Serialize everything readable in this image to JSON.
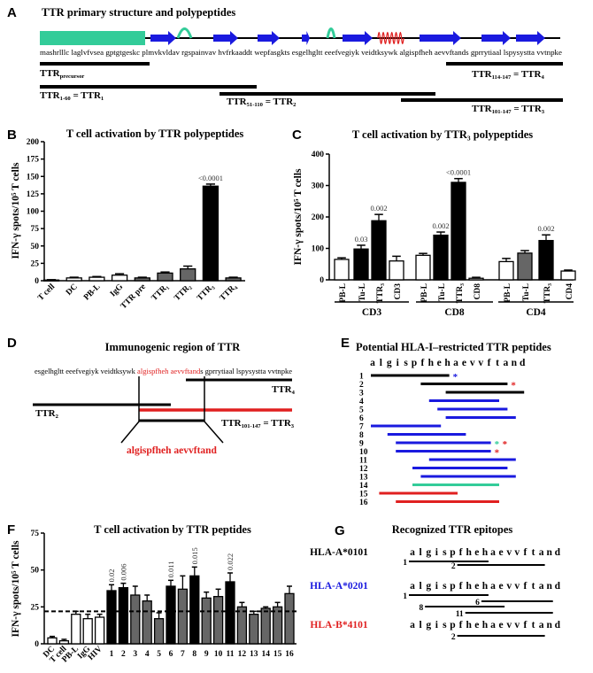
{
  "colors": {
    "strand": "#1a1adf",
    "loop": "#33cc99",
    "helix": "#e02020",
    "signal": "#33cc99",
    "highlight": "#e02020",
    "black_bar": "#000000",
    "gray_bar": "#666666",
    "white_bar": "#ffffff",
    "hla_a0101": "#000000",
    "hla_a0201": "#2a2acc",
    "hla_b4101": "#cc1a1a"
  },
  "panelA": {
    "letter": "A",
    "title": "TTR primary structure and polypeptides",
    "secondary_structure": [
      "signal",
      "strand",
      "loop",
      "strand",
      "strand",
      "strand",
      "loop",
      "strand",
      "helix",
      "strand",
      "strand",
      "strand"
    ],
    "sequence": "mashrlllc laglvfvsea gptgtgeskc plmvkvldav rgspainvav hvfrkaaddt wepfasgkts esgelhgltt eeefvegiyk veidtksywk algispfheh aevvftands gprrytiaal lspysystta vvtnpke",
    "labels": {
      "precursor": [
        {
          "t": "TTR",
          "sub": false
        },
        {
          "t": "precursor",
          "sub": true
        }
      ],
      "ttr4": [
        {
          "t": "TTR",
          "sub": false
        },
        {
          "t": "114-147",
          "sub": true
        },
        {
          "t": " = TTR",
          "sub": false
        },
        {
          "t": "4",
          "sub": true
        }
      ],
      "ttr1": [
        {
          "t": "TTR",
          "sub": false
        },
        {
          "t": "1-60",
          "sub": true
        },
        {
          "t": " = TTR",
          "sub": false
        },
        {
          "t": "1",
          "sub": true
        }
      ],
      "ttr2": [
        {
          "t": "TTR",
          "sub": false
        },
        {
          "t": "51-110",
          "sub": true
        },
        {
          "t": " = TTR",
          "sub": false
        },
        {
          "t": "2",
          "sub": true
        }
      ],
      "ttr3": [
        {
          "t": "TTR",
          "sub": false
        },
        {
          "t": "101-147",
          "sub": true
        },
        {
          "t": " = TTR",
          "sub": false
        },
        {
          "t": "3",
          "sub": true
        }
      ]
    }
  },
  "panelD": {
    "letter": "D",
    "title": "Immunogenic region of TTR",
    "seq_before": "esgelhgltt eeefvegiyk veidtksywk ",
    "seq_red": "algispfheh aevvftand",
    "seq_after": "s gprrytiaal lspysystta vvtnpke",
    "ttr4": [
      {
        "t": "TTR",
        "sub": false
      },
      {
        "t": "4",
        "sub": true
      }
    ],
    "ttr2": [
      {
        "t": "TTR",
        "sub": false
      },
      {
        "t": "2",
        "sub": true
      }
    ],
    "ttr3": [
      {
        "t": "TTR",
        "sub": false
      },
      {
        "t": "101-147",
        "sub": true
      },
      {
        "t": " = TTR",
        "sub": false
      },
      {
        "t": "3",
        "sub": true
      }
    ],
    "epitope": "algispfheh aevvftand"
  },
  "panelE": {
    "letter": "E",
    "title": "Potential HLA-I–restricted TTR peptides",
    "letters": [
      "a",
      "l",
      "g",
      "i",
      "s",
      "p",
      "f",
      "h",
      "e",
      "h",
      "a",
      "e",
      "v",
      "v",
      "f",
      "t",
      "a",
      "n",
      "d"
    ],
    "peptides": [
      {
        "n": "1",
        "start": 1,
        "end": 10,
        "color": "black",
        "stars": [
          "blue"
        ]
      },
      {
        "n": "2",
        "start": 7,
        "end": 17,
        "color": "black",
        "stars": [
          "red"
        ]
      },
      {
        "n": "3",
        "start": 10,
        "end": 19,
        "color": "black",
        "stars": []
      },
      {
        "n": "4",
        "start": 8,
        "end": 16,
        "color": "blue",
        "stars": []
      },
      {
        "n": "5",
        "start": 9,
        "end": 17,
        "color": "blue",
        "stars": []
      },
      {
        "n": "6",
        "start": 10,
        "end": 18,
        "color": "blue",
        "stars": []
      },
      {
        "n": "7",
        "start": 1,
        "end": 9,
        "color": "blue",
        "stars": []
      },
      {
        "n": "8",
        "start": 3,
        "end": 12,
        "color": "blue",
        "stars": []
      },
      {
        "n": "9",
        "start": 4,
        "end": 15,
        "color": "blue",
        "stars": [
          "green",
          "red"
        ]
      },
      {
        "n": "10",
        "start": 4,
        "end": 15,
        "color": "blue",
        "stars": [
          "red"
        ]
      },
      {
        "n": "11",
        "start": 8,
        "end": 18,
        "color": "blue",
        "stars": []
      },
      {
        "n": "12",
        "start": 6,
        "end": 17,
        "color": "blue",
        "stars": []
      },
      {
        "n": "13",
        "start": 7,
        "end": 18,
        "color": "blue",
        "stars": []
      },
      {
        "n": "14",
        "start": 6,
        "end": 16,
        "color": "green",
        "stars": []
      },
      {
        "n": "15",
        "start": 2,
        "end": 11,
        "color": "red",
        "stars": []
      },
      {
        "n": "16",
        "start": 4,
        "end": 16,
        "color": "red",
        "stars": []
      }
    ]
  },
  "panelG": {
    "letter": "G",
    "title": "Recognized TTR epitopes",
    "letters": [
      "a",
      "l",
      "g",
      "i",
      "s",
      "p",
      "f",
      "h",
      "e",
      "h",
      "a",
      "e",
      "v",
      "v",
      "f",
      "t",
      "a",
      "n",
      "d"
    ],
    "alleles": [
      {
        "name": "HLA-A*0101",
        "color": "black",
        "underlined_to": 10,
        "epitopes": [
          {
            "n": "1",
            "start": 1,
            "end": 10
          },
          {
            "n": "2",
            "start": 7,
            "end": 17
          }
        ]
      },
      {
        "name": "HLA-A*0201",
        "color": "blue",
        "underlined_to": 10,
        "epitopes": [
          {
            "n": "1",
            "start": 1,
            "end": 10
          },
          {
            "n": "6",
            "start": 10,
            "end": 18
          },
          {
            "n": "8",
            "start": 3,
            "end": 12
          },
          {
            "n": "11",
            "start": 8,
            "end": 18
          }
        ]
      },
      {
        "name": "HLA-B*4101",
        "color": "red",
        "underlined_to": 0,
        "epitopes": [
          {
            "n": "2",
            "start": 7,
            "end": 17
          }
        ]
      }
    ]
  },
  "chart_data": [
    {
      "panel": "B",
      "type": "bar",
      "title": "T cell activation by TTR polypeptides",
      "ylabel": "IFN-γ spots/10⁵ T cells",
      "ylim": [
        0,
        200
      ],
      "yticks": [
        0,
        25,
        50,
        75,
        100,
        125,
        150,
        175,
        200
      ],
      "categories": [
        "T cell",
        "DC",
        "PB-L",
        "IgG",
        "TTR pre",
        "TTR₁",
        "TTR₂",
        "TTR₃",
        "TTR₄"
      ],
      "values": [
        1,
        4,
        5,
        8,
        4,
        11,
        17,
        136,
        4
      ],
      "errors": [
        0.5,
        1,
        1,
        2,
        1,
        1.5,
        4,
        3,
        1
      ],
      "fills": [
        "white",
        "white",
        "white",
        "white",
        "gray",
        "gray",
        "gray",
        "black",
        "gray"
      ],
      "annotations": [
        "",
        "",
        "",
        "",
        "",
        "",
        "",
        "<0.0001",
        ""
      ]
    },
    {
      "panel": "C",
      "type": "bar",
      "title": "T cell activation by TTR₃ polypeptides",
      "ylabel": "IFN-γ spots/10⁵ T cells",
      "ylim": [
        0,
        400
      ],
      "yticks": [
        0,
        100,
        200,
        300,
        400
      ],
      "categories": [
        "PB-L",
        "Tu-L",
        "TTR₃",
        "CD3",
        "PB-L",
        "Tu-L",
        "TTR₃",
        "CD8",
        "PB-L",
        "Tu-L",
        "TTR₃",
        "CD4"
      ],
      "groups": [
        {
          "name": "CD3",
          "members": 4
        },
        {
          "name": "CD8",
          "members": 4
        },
        {
          "name": "CD4",
          "members": 4
        }
      ],
      "values": [
        65,
        98,
        188,
        60,
        78,
        142,
        310,
        5,
        58,
        85,
        125,
        28
      ],
      "errors": [
        5,
        12,
        20,
        15,
        6,
        10,
        12,
        3,
        10,
        8,
        18,
        3
      ],
      "fills": [
        "white",
        "black",
        "black",
        "white",
        "white",
        "black",
        "black",
        "white",
        "white",
        "gray",
        "black",
        "white"
      ],
      "annotations": [
        "",
        "0.03",
        "0.002",
        "",
        "",
        "0.002",
        "<0.0001",
        "",
        "",
        "",
        "0.002",
        ""
      ]
    },
    {
      "panel": "F",
      "type": "bar",
      "title": "T cell activation by TTR peptides",
      "ylabel": "IFN-γ spots/10⁵ T cells",
      "ylim": [
        0,
        75
      ],
      "yticks": [
        0,
        25,
        50,
        75
      ],
      "threshold": 22,
      "categories": [
        "DC",
        "T cell",
        "PB-L",
        "IgG",
        "HIV",
        "1",
        "2",
        "3",
        "4",
        "5",
        "6",
        "7",
        "8",
        "9",
        "10",
        "11",
        "12",
        "13",
        "14",
        "15",
        "16"
      ],
      "values": [
        4,
        2,
        20,
        17,
        18,
        36,
        38,
        33,
        29,
        17,
        39,
        37,
        46,
        31,
        32,
        42,
        25,
        20,
        24,
        25,
        34
      ],
      "errors": [
        1,
        1,
        2,
        3,
        2,
        4,
        3,
        6,
        4,
        4,
        4,
        9,
        6,
        4,
        5,
        6,
        3,
        2,
        1,
        3,
        5
      ],
      "fills": [
        "white",
        "white",
        "white",
        "white",
        "white",
        "black",
        "black",
        "gray",
        "gray",
        "gray",
        "black",
        "gray",
        "black",
        "gray",
        "gray",
        "black",
        "gray",
        "gray",
        "gray",
        "gray",
        "gray"
      ],
      "annotations": [
        "",
        "",
        "",
        "",
        "",
        "0.02",
        "0.006",
        "",
        "",
        "",
        "0.011",
        "",
        "0.015",
        "",
        "",
        "0.022",
        "",
        "",
        "",
        "",
        ""
      ]
    }
  ]
}
